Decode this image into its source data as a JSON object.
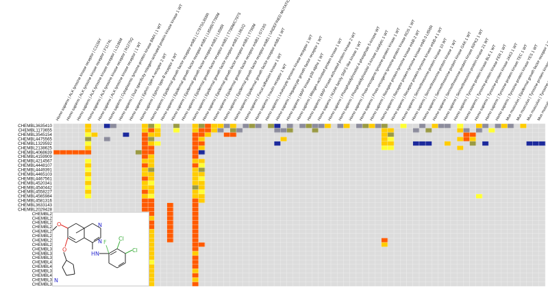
{
  "colors": {
    "background": "#ffffff",
    "grid_empty": "#dcdcdc",
    "grid_line": "#f2f2f2",
    "high": "#ff5a00",
    "mid": "#ffcc00",
    "low": "#ffff33",
    "olive": "#9a9a44",
    "grey": "#8c8c9c",
    "navy": "#1c2a9c",
    "mol_N": "#2a2ad0",
    "mol_O": "#e0201a",
    "mol_F": "#5ac05a",
    "mol_Cl": "#33aa33"
  },
  "structure": {
    "atoms": {
      "N1": "N",
      "N2": "N",
      "O1": "O",
      "O2": "O",
      "F": "F",
      "Cl1": "Cl",
      "Cl2": "Cl",
      "NH": "HN",
      "N3": "N"
    }
  },
  "chart_data": {
    "type": "heatmap",
    "columns": [
      "Homo sapiens | ALK tyrosine kinase receptor | C1156Y",
      "Homo sapiens | ALK tyrosine kinase receptor | F1174L",
      "Homo sapiens | ALK tyrosine kinase receptor | L1196M",
      "Homo sapiens | ALK tyrosine kinase receptor | R1275Q",
      "Homo sapiens | ALK tyrosine kinase receptor | 1 WT",
      "Homo sapiens | Cytoplasmic tyrosine-protein kinase BMX | 1 WT",
      "Homo sapiens | Dual specificity mitogen-activated protein kinase kinase 1 WT",
      "Homo sapiens | Ephrin type-A receptor 2 WT",
      "Homo sapiens | Ephrin type-B receptor 4 WT",
      "Homo sapiens | Epidermal growth factor receptor erbB1 | C797S/L858R",
      "Homo sapiens | Epidermal growth factor receptor erbB1 | L858R/T790M",
      "Homo sapiens | Epidermal growth factor receptor erbB1 | L858R",
      "Homo sapiens | Epidermal growth factor receptor erbB1 | T790M/C797S",
      "Homo sapiens | Epidermal growth factor receptor erbB1 | L861Q",
      "Homo sapiens | Epidermal growth factor receptor erbB1 | T790M",
      "Homo sapiens | Epidermal growth factor receptor erbB1 | G719S",
      "Homo sapiens | Epidermal growth factor receptor erbB1 | UNDEFINED MUTATION",
      "Homo sapiens | Epidermal growth factor receptor erbB1 1 WT",
      "Homo sapiens | Focal adhesion kinase 1 WT",
      "Homo sapiens | Insulin receptor 1 WT",
      "Homo sapiens | Leukocyte tyrosine kinase receptor 1 WT",
      "Homo sapiens | Hepatocyte growth factor receptor 1 WT",
      "Homo sapiens | MAP kinase p38 alpha 1 WT",
      "Homo sapiens | Mitogen-activated protein kinase 1 WT",
      "Homo sapiens | MAP kinase-activated protein kinase 2 WT",
      "Homo sapiens | NUAK family SNF1-like kinase 1 WT",
      "Homo sapiens | Phosphatidylinositol 4-phosphate 5-kinase WT",
      "Homo sapiens | Phosphatidylinositol 3-kinase catalytic 1 WT",
      "Homo sapiens | Proto-oncogene tyrosine-protein kinase 1 WT",
      "Homo sapiens | Proto-oncogene tyrosine-protein kinase ROS 1 WT",
      "Homo sapiens | Receptor protein-tyrosine kinase erbB-2 WT",
      "Homo sapiens | Receptor protein-tyrosine kinase erbB-3 L858R",
      "Homo sapiens | Receptor protein-tyrosine kinase erbB-4 1 WT",
      "Homo sapiens | Serine/threonine-protein kinase 10 WT",
      "Homo sapiens | Serine/threonine-protein kinase 1 WT",
      "Homo sapiens | Serine/threonine-protein kinase GAK 1 WT",
      "Homo sapiens | Serine/threonine-protein kinase RIPK2 1 WT",
      "Homo sapiens | Serine/threonine-protein kinase 21 WT",
      "Homo sapiens | Tyrosine-protein kinase BLK 1 WT",
      "Homo sapiens | Tyrosine-protein kinase FER 1 WT",
      "Homo sapiens | Tyrosine-protein kinase JAK3 1 WT",
      "Homo sapiens | Tyrosine-protein kinase TEC 1 WT",
      "Homo sapiens | Tyrosine-protein kinase YES 1 WT",
      "Mus musculus | Epidermal growth factor receptor 1 WT",
      "Mus musculus | Tyrosine-protein kinase receptor RET 1 WT",
      "Mus musculus | Tyrosine-protein kinase 1 WT",
      "Mus musculus | Tyrosine-protein kinase receptor 2 WT"
    ],
    "rows": [
      "CHEMBL3635410",
      "CHEMBL1173655",
      "CHEMBL3545154",
      "CHEMBL4475565",
      "CHEMBL1329592",
      "CHEMBL2138625",
      "CHEMBL4068639",
      "CHEMBL4159909",
      "CHEMBL4214567",
      "CHEMBL4448107",
      "CHEMBL4449391",
      "CHEMBL4465103",
      "CHEMBL4467561",
      "CHEMBL4520341",
      "CHEMBL4540442",
      "CHEMBL4558227",
      "CHEMBL4565984",
      "CHEMBL4581316",
      "CHEMBL3633143",
      "CHEMBL2029428",
      "CHEMBL2",
      "CHEMBL2",
      "CHEMBL2",
      "CHEMBL2",
      "CHEMBL2",
      "CHEMBL2",
      "CHEMBL2",
      "CHEMBL2",
      "CHEMBL3",
      "CHEMBL3",
      "CHEMBL3",
      "CHEMBL4",
      "CHEMBL4",
      "CHEMBL3",
      "CHEMBL4",
      "CHEMBL3",
      "CHEMBL3"
    ],
    "legend_levels": [
      "high",
      "mid",
      "low",
      "olive",
      "grey",
      "navy"
    ],
    "cells": [
      [
        0,
        5,
        "mid"
      ],
      [
        0,
        8,
        "navy"
      ],
      [
        0,
        9,
        "grey"
      ],
      [
        0,
        14,
        "mid"
      ],
      [
        0,
        15,
        "olive"
      ],
      [
        0,
        16,
        "low"
      ],
      [
        0,
        19,
        "olive"
      ],
      [
        0,
        22,
        "mid"
      ],
      [
        0,
        23,
        "olive"
      ],
      [
        0,
        24,
        "high"
      ],
      [
        0,
        25,
        "mid"
      ],
      [
        0,
        26,
        "mid"
      ],
      [
        0,
        27,
        "grey"
      ],
      [
        0,
        28,
        "mid"
      ],
      [
        0,
        30,
        "grey"
      ],
      [
        0,
        31,
        "olive"
      ],
      [
        0,
        32,
        "grey"
      ],
      [
        0,
        34,
        "olive"
      ],
      [
        0,
        35,
        "navy"
      ],
      [
        0,
        37,
        "grey"
      ],
      [
        0,
        39,
        "grey"
      ],
      [
        0,
        40,
        "olive"
      ],
      [
        0,
        41,
        "grey"
      ],
      [
        0,
        42,
        "grey"
      ],
      [
        0,
        43,
        "mid"
      ],
      [
        0,
        45,
        "grey"
      ],
      [
        0,
        46,
        "mid"
      ],
      [
        0,
        48,
        "grey"
      ],
      [
        0,
        49,
        "olive"
      ],
      [
        0,
        50,
        "mid"
      ],
      [
        0,
        51,
        "grey"
      ],
      [
        0,
        52,
        "olive"
      ],
      [
        0,
        55,
        "low"
      ],
      [
        0,
        58,
        "grey"
      ],
      [
        0,
        60,
        "mid"
      ],
      [
        0,
        61,
        "grey"
      ],
      [
        0,
        62,
        "grey"
      ],
      [
        0,
        64,
        "low"
      ],
      [
        0,
        67,
        "mid"
      ],
      [
        0,
        68,
        "grey"
      ],
      [
        0,
        70,
        "grey"
      ],
      [
        0,
        71,
        "mid"
      ],
      [
        0,
        72,
        "grey"
      ],
      [
        0,
        74,
        "mid"
      ],
      [
        1,
        5,
        "mid"
      ],
      [
        1,
        14,
        "mid"
      ],
      [
        1,
        15,
        "high"
      ],
      [
        1,
        16,
        "mid"
      ],
      [
        1,
        19,
        "low"
      ],
      [
        1,
        22,
        "mid"
      ],
      [
        1,
        23,
        "high"
      ],
      [
        1,
        24,
        "high"
      ],
      [
        1,
        25,
        "mid"
      ],
      [
        1,
        26,
        "grey"
      ],
      [
        1,
        28,
        "olive"
      ],
      [
        1,
        29,
        "grey"
      ],
      [
        1,
        35,
        "grey"
      ],
      [
        1,
        36,
        "grey"
      ],
      [
        1,
        37,
        "olive"
      ],
      [
        1,
        41,
        "olive"
      ],
      [
        1,
        52,
        "mid"
      ],
      [
        1,
        53,
        "mid"
      ],
      [
        1,
        57,
        "grey"
      ],
      [
        1,
        59,
        "olive"
      ],
      [
        1,
        64,
        "mid"
      ],
      [
        1,
        65,
        "grey"
      ],
      [
        1,
        67,
        "grey"
      ],
      [
        1,
        69,
        "low"
      ],
      [
        2,
        5,
        "low"
      ],
      [
        2,
        6,
        "mid"
      ],
      [
        2,
        11,
        "navy"
      ],
      [
        2,
        14,
        "high"
      ],
      [
        2,
        15,
        "mid"
      ],
      [
        2,
        16,
        "mid"
      ],
      [
        2,
        22,
        "high"
      ],
      [
        2,
        23,
        "high"
      ],
      [
        2,
        24,
        "mid"
      ],
      [
        2,
        27,
        "high"
      ],
      [
        2,
        28,
        "high"
      ],
      [
        2,
        52,
        "mid"
      ],
      [
        2,
        53,
        "olive"
      ],
      [
        2,
        65,
        "high"
      ],
      [
        2,
        66,
        "high"
      ],
      [
        3,
        5,
        "olive"
      ],
      [
        3,
        8,
        "grey"
      ],
      [
        3,
        14,
        "high"
      ],
      [
        3,
        15,
        "olive"
      ],
      [
        3,
        22,
        "high"
      ],
      [
        3,
        23,
        "mid"
      ],
      [
        3,
        36,
        "mid"
      ],
      [
        3,
        52,
        "mid"
      ],
      [
        3,
        53,
        "low"
      ],
      [
        3,
        64,
        "mid"
      ],
      [
        3,
        65,
        "high"
      ],
      [
        3,
        66,
        "mid"
      ],
      [
        4,
        5,
        "low"
      ],
      [
        4,
        14,
        "high"
      ],
      [
        4,
        15,
        "mid"
      ],
      [
        4,
        16,
        "low"
      ],
      [
        4,
        22,
        "high"
      ],
      [
        4,
        23,
        "high"
      ],
      [
        4,
        35,
        "navy"
      ],
      [
        4,
        52,
        "mid"
      ],
      [
        4,
        53,
        "mid"
      ],
      [
        4,
        57,
        "navy"
      ],
      [
        4,
        58,
        "navy"
      ],
      [
        4,
        59,
        "navy"
      ],
      [
        4,
        62,
        "mid"
      ],
      [
        4,
        66,
        "olive"
      ],
      [
        4,
        68,
        "navy"
      ],
      [
        4,
        75,
        "navy"
      ],
      [
        4,
        76,
        "navy"
      ],
      [
        4,
        77,
        "navy"
      ],
      [
        5,
        5,
        "mid"
      ],
      [
        5,
        14,
        "high"
      ],
      [
        5,
        15,
        "high"
      ],
      [
        5,
        22,
        "high"
      ],
      [
        5,
        23,
        "mid"
      ],
      [
        5,
        52,
        "low"
      ],
      [
        5,
        53,
        "low"
      ],
      [
        5,
        64,
        "mid"
      ],
      [
        6,
        0,
        "high"
      ],
      [
        6,
        1,
        "high"
      ],
      [
        6,
        2,
        "high"
      ],
      [
        6,
        3,
        "high"
      ],
      [
        6,
        4,
        "high"
      ],
      [
        6,
        5,
        "high"
      ],
      [
        6,
        13,
        "olive"
      ],
      [
        6,
        14,
        "high"
      ],
      [
        6,
        15,
        "high"
      ],
      [
        6,
        22,
        "high"
      ],
      [
        6,
        23,
        "navy"
      ],
      [
        7,
        14,
        "high"
      ],
      [
        7,
        15,
        "mid"
      ],
      [
        7,
        22,
        "high"
      ],
      [
        8,
        5,
        "low"
      ],
      [
        8,
        14,
        "mid"
      ],
      [
        8,
        15,
        "mid"
      ],
      [
        8,
        22,
        "mid"
      ],
      [
        8,
        23,
        "mid"
      ],
      [
        9,
        5,
        "mid"
      ],
      [
        9,
        14,
        "high"
      ],
      [
        9,
        15,
        "mid"
      ],
      [
        9,
        22,
        "high"
      ],
      [
        9,
        23,
        "low"
      ],
      [
        10,
        5,
        "low"
      ],
      [
        10,
        14,
        "mid"
      ],
      [
        10,
        15,
        "olive"
      ],
      [
        10,
        22,
        "mid"
      ],
      [
        10,
        23,
        "olive"
      ],
      [
        11,
        5,
        "mid"
      ],
      [
        11,
        14,
        "mid"
      ],
      [
        11,
        15,
        "mid"
      ],
      [
        11,
        22,
        "mid"
      ],
      [
        11,
        23,
        "mid"
      ],
      [
        12,
        5,
        "low"
      ],
      [
        12,
        14,
        "high"
      ],
      [
        12,
        15,
        "mid"
      ],
      [
        12,
        22,
        "mid"
      ],
      [
        12,
        23,
        "low"
      ],
      [
        13,
        5,
        "mid"
      ],
      [
        13,
        14,
        "mid"
      ],
      [
        13,
        15,
        "low"
      ],
      [
        13,
        22,
        "mid"
      ],
      [
        13,
        23,
        "mid"
      ],
      [
        14,
        5,
        "low"
      ],
      [
        14,
        14,
        "mid"
      ],
      [
        14,
        15,
        "mid"
      ],
      [
        14,
        22,
        "olive"
      ],
      [
        14,
        23,
        "mid"
      ],
      [
        15,
        5,
        "mid"
      ],
      [
        15,
        14,
        "high"
      ],
      [
        15,
        15,
        "mid"
      ],
      [
        15,
        22,
        "mid"
      ],
      [
        15,
        23,
        "low"
      ],
      [
        16,
        5,
        "low"
      ],
      [
        16,
        14,
        "mid"
      ],
      [
        16,
        15,
        "low"
      ],
      [
        16,
        22,
        "mid"
      ],
      [
        16,
        23,
        "mid"
      ],
      [
        16,
        67,
        "low"
      ],
      [
        17,
        14,
        "high"
      ],
      [
        17,
        15,
        "high"
      ],
      [
        17,
        22,
        "high"
      ],
      [
        17,
        23,
        "mid"
      ],
      [
        18,
        14,
        "high"
      ],
      [
        18,
        15,
        "high"
      ],
      [
        18,
        18,
        "high"
      ],
      [
        18,
        22,
        "high"
      ],
      [
        19,
        14,
        "high"
      ],
      [
        19,
        15,
        "high"
      ],
      [
        19,
        18,
        "high"
      ],
      [
        19,
        22,
        "high"
      ],
      [
        20,
        14,
        "high"
      ],
      [
        20,
        15,
        "high"
      ],
      [
        20,
        18,
        "high"
      ],
      [
        20,
        22,
        "high"
      ],
      [
        21,
        14,
        "high"
      ],
      [
        21,
        15,
        "mid"
      ],
      [
        21,
        18,
        "high"
      ],
      [
        21,
        22,
        "high"
      ],
      [
        22,
        14,
        "high"
      ],
      [
        22,
        15,
        "high"
      ],
      [
        22,
        18,
        "high"
      ],
      [
        22,
        22,
        "high"
      ],
      [
        23,
        14,
        "high"
      ],
      [
        23,
        15,
        "high"
      ],
      [
        23,
        18,
        "high"
      ],
      [
        23,
        22,
        "high"
      ],
      [
        24,
        14,
        "high"
      ],
      [
        24,
        15,
        "mid"
      ],
      [
        24,
        18,
        "high"
      ],
      [
        24,
        22,
        "high"
      ],
      [
        25,
        14,
        "high"
      ],
      [
        25,
        15,
        "mid"
      ],
      [
        25,
        18,
        "high"
      ],
      [
        25,
        22,
        "high"
      ],
      [
        26,
        14,
        "high"
      ],
      [
        26,
        15,
        "mid"
      ],
      [
        26,
        18,
        "high"
      ],
      [
        26,
        22,
        "high"
      ],
      [
        26,
        52,
        "high"
      ],
      [
        27,
        14,
        "high"
      ],
      [
        27,
        15,
        "mid"
      ],
      [
        27,
        22,
        "high"
      ],
      [
        27,
        23,
        "high"
      ],
      [
        27,
        52,
        "mid"
      ],
      [
        28,
        14,
        "high"
      ],
      [
        28,
        15,
        "mid"
      ],
      [
        28,
        22,
        "high"
      ],
      [
        29,
        14,
        "high"
      ],
      [
        29,
        15,
        "mid"
      ],
      [
        29,
        22,
        "mid"
      ],
      [
        30,
        14,
        "high"
      ],
      [
        30,
        15,
        "mid"
      ],
      [
        30,
        22,
        "high"
      ],
      [
        31,
        14,
        "high"
      ],
      [
        31,
        15,
        "low"
      ],
      [
        31,
        22,
        "high"
      ],
      [
        32,
        14,
        "high"
      ],
      [
        32,
        15,
        "mid"
      ],
      [
        32,
        22,
        "high"
      ],
      [
        33,
        14,
        "high"
      ],
      [
        33,
        15,
        "mid"
      ],
      [
        33,
        22,
        "mid"
      ],
      [
        34,
        14,
        "high"
      ],
      [
        34,
        15,
        "mid"
      ],
      [
        34,
        22,
        "high"
      ],
      [
        35,
        14,
        "high"
      ],
      [
        35,
        15,
        "mid"
      ],
      [
        35,
        22,
        "mid"
      ],
      [
        36,
        14,
        "high"
      ],
      [
        36,
        15,
        "mid"
      ],
      [
        36,
        22,
        "high"
      ]
    ]
  }
}
